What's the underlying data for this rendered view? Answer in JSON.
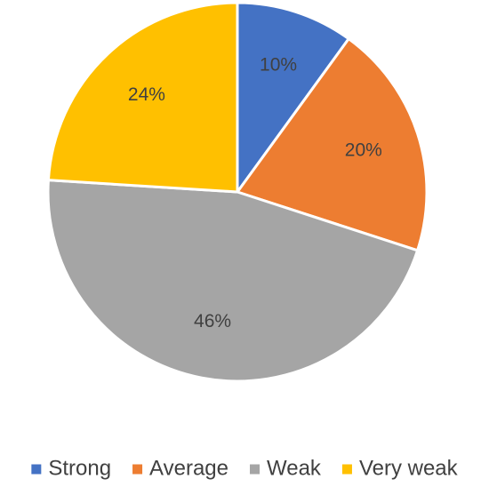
{
  "chart_data": {
    "type": "pie",
    "title": "",
    "categories": [
      "Strong",
      "Average",
      "Weak",
      "Very weak"
    ],
    "values": [
      10,
      20,
      46,
      24
    ],
    "labels": [
      "10%",
      "20%",
      "46%",
      "24%"
    ],
    "colors": [
      "#4472C4",
      "#ED7D31",
      "#A5A5A5",
      "#FFC000"
    ],
    "start_angle_deg": 0,
    "direction": "clockwise",
    "legend_position": "bottom"
  }
}
